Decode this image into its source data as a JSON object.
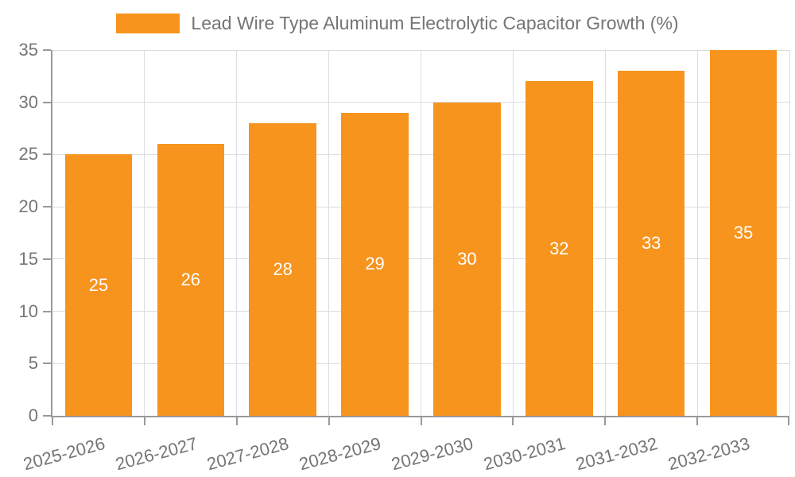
{
  "chart_data": {
    "type": "bar",
    "title": "Lead Wire Type Aluminum Electrolytic Capacitor Growth (%)",
    "categories": [
      "2025-2026",
      "2026-2027",
      "2027-2028",
      "2028-2029",
      "2029-2030",
      "2030-2031",
      "2031-2032",
      "2032-2033"
    ],
    "values": [
      25,
      26,
      28,
      29,
      30,
      32,
      33,
      35
    ],
    "xlabel": "",
    "ylabel": "",
    "ylim": [
      0,
      35
    ],
    "yticks": [
      0,
      5,
      10,
      15,
      20,
      25,
      30,
      35
    ],
    "grid": true,
    "legend_position": "top-center",
    "x_label_rotation_deg": -15,
    "colors": {
      "bar": "#F7941E",
      "value_label": "#FFFFFF",
      "axis": "#999999",
      "gridline": "#DDDDDD",
      "tick_label": "#757575",
      "legend_text": "#757575",
      "background": "#FFFFFF"
    }
  }
}
